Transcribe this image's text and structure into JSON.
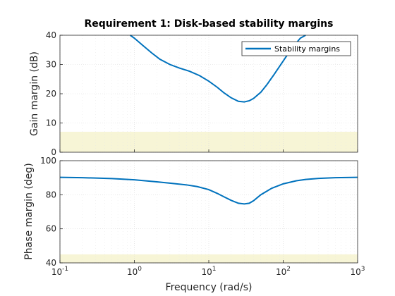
{
  "chart_data": {
    "type": "line",
    "title": "Requirement 1: Disk-based stability margins",
    "xlabel": "Frequency (rad/s)",
    "xscale": "log",
    "xlim": [
      0.1,
      1000
    ],
    "x_ticks": [
      {
        "base": "10",
        "exp": "-1"
      },
      {
        "base": "10",
        "exp": "0"
      },
      {
        "base": "10",
        "exp": "1"
      },
      {
        "base": "10",
        "exp": "2"
      },
      {
        "base": "10",
        "exp": "3"
      }
    ],
    "grid": true,
    "legend": {
      "location": "top-right",
      "entries": [
        "Stability margins"
      ]
    },
    "colors": {
      "series": "#0072bd",
      "region": "#f7f5d6"
    },
    "subplots": [
      {
        "id": "gain",
        "ylabel": "Gain margin (dB)",
        "ylim": [
          0,
          40
        ],
        "y_ticks": [
          "0",
          "10",
          "20",
          "30",
          "40"
        ],
        "shaded_region": [
          0,
          7
        ],
        "series": [
          {
            "name": "Stability margins",
            "x": [
              0.88,
              1.0,
              1.3,
              1.7,
              2.2,
              3.0,
              4.0,
              5.5,
              7.5,
              10,
              13,
              16,
              20,
              25,
              30,
              35,
              40,
              50,
              60,
              75,
              100,
              130,
              170,
              200
            ],
            "y": [
              40,
              39.0,
              36.5,
              34.0,
              31.8,
              30.0,
              28.8,
              27.7,
              26.2,
              24.3,
              22.2,
              20.3,
              18.6,
              17.4,
              17.2,
              17.6,
              18.4,
              20.5,
              23.0,
              26.5,
              31.2,
              35.5,
              39.0,
              40
            ]
          }
        ]
      },
      {
        "id": "phase",
        "ylabel": "Phase margin (deg)",
        "ylim": [
          40,
          100
        ],
        "y_ticks": [
          "40",
          "60",
          "80",
          "100"
        ],
        "shaded_region": [
          40,
          45
        ],
        "series": [
          {
            "name": "Stability margins",
            "x": [
              0.1,
              0.2,
              0.3,
              0.5,
              1.0,
              2.0,
              3.0,
              5.0,
              7.0,
              10,
              13,
              16,
              20,
              25,
              30,
              35,
              40,
              50,
              70,
              100,
              150,
              200,
              300,
              500,
              1000
            ],
            "y": [
              90.2,
              90.0,
              89.8,
              89.5,
              88.8,
              87.6,
              86.8,
              85.8,
              84.8,
              83.0,
              80.8,
              78.8,
              76.7,
              75.0,
              74.6,
              75.0,
              76.5,
              80.0,
              83.8,
              86.4,
              88.2,
              89.0,
              89.6,
              90.0,
              90.2
            ]
          }
        ]
      }
    ]
  }
}
